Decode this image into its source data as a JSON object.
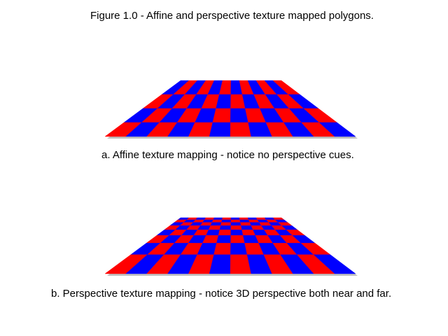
{
  "figure": {
    "title": "Figure 1.0 - Affine and perspective texture mapped polygons.",
    "panel_a": {
      "caption": "a. Affine texture mapping - notice no perspective cues.",
      "mapping": "affine",
      "columns": 12,
      "rows": 4
    },
    "panel_b": {
      "caption": "b. Perspective texture mapping - notice 3D perspective both near and far.",
      "mapping": "perspective",
      "columns": 12,
      "rows": 8
    },
    "colors": {
      "red": "#ff0000",
      "blue": "#0000ff",
      "shadow": "#8a8a8a"
    }
  }
}
